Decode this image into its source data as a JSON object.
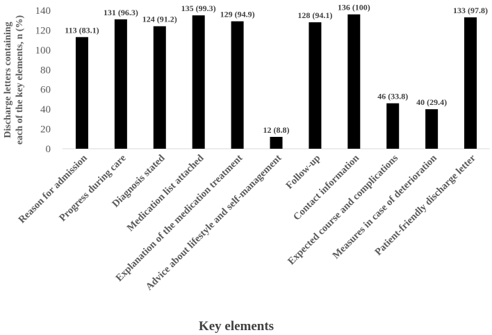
{
  "chart_data": {
    "type": "bar",
    "categories": [
      "Reason for admission",
      "Progress during care",
      "Diagnosis stated",
      "Medication list attached",
      "Explanation of the medication treatment",
      "Advice about lifestyle and self-management",
      "Follow-up",
      "Contact information",
      "Expected course and complications",
      "Measures in case of deterioration",
      "Patient-friendly discharge letter"
    ],
    "values": [
      113,
      131,
      124,
      135,
      129,
      12,
      128,
      136,
      46,
      40,
      133
    ],
    "data_labels": [
      "113 (83.1)",
      "131 (96.3)",
      "124 (91.2)",
      "135 (99.3)",
      "129 (94.9)",
      "12 (8.8)",
      "128 (94.1)",
      "136 (100)",
      "46 (33.8)",
      "40 (29.4)",
      "133 (97.8)"
    ],
    "yticks": [
      0,
      20,
      40,
      60,
      80,
      100,
      120,
      140
    ],
    "ylim": [
      0,
      140
    ],
    "xlabel": "Key elements",
    "ylabel_lines": [
      "Discharge letters containing",
      "each of the key elements, n (%)"
    ],
    "grid": false,
    "bar_color": "#000000",
    "text_color": "#595959"
  }
}
